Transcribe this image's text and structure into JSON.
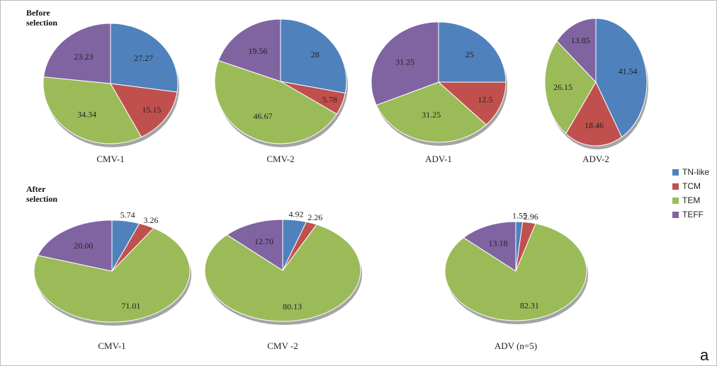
{
  "colors": {
    "TN-like": "#4f81bd",
    "TCM": "#c0504d",
    "TEM": "#9bbb59",
    "TEFF": "#8064a2"
  },
  "sections": {
    "before": "Before selection",
    "after": "After selection"
  },
  "panel_letter": "a",
  "legend": [
    "TN-like",
    "TCM",
    "TEM",
    "TEFF"
  ],
  "chart_data": [
    {
      "type": "pie",
      "group": "before",
      "title": "CMV-1",
      "labels": [
        "TN-like",
        "TCM",
        "TEM",
        "TEFF"
      ],
      "value_labels": [
        "27.27",
        "15.15",
        "34.34",
        "23.23"
      ],
      "values": [
        27.27,
        15.15,
        34.34,
        23.23
      ]
    },
    {
      "type": "pie",
      "group": "before",
      "title": "CMV-2",
      "labels": [
        "TN-like",
        "TCM",
        "TEM",
        "TEFF"
      ],
      "value_labels": [
        "28",
        "5.78",
        "46.67",
        "19.56"
      ],
      "values": [
        28,
        5.78,
        46.67,
        19.56
      ]
    },
    {
      "type": "pie",
      "group": "before",
      "title": "ADV-1",
      "labels": [
        "TN-like",
        "TCM",
        "TEM",
        "TEFF"
      ],
      "value_labels": [
        "25",
        "12.5",
        "31.25",
        "31.25"
      ],
      "values": [
        25,
        12.5,
        31.25,
        31.25
      ]
    },
    {
      "type": "pie",
      "group": "before",
      "title": "ADV-2",
      "labels": [
        "TN-like",
        "TCM",
        "TEM",
        "TEFF"
      ],
      "value_labels": [
        "41.54",
        "18.46",
        "26.15",
        "13.85"
      ],
      "values": [
        41.54,
        18.46,
        26.15,
        13.85
      ]
    },
    {
      "type": "pie",
      "group": "after",
      "title": "CMV-1",
      "labels": [
        "TN-like",
        "TCM",
        "TEM",
        "TEFF"
      ],
      "value_labels": [
        "5.74",
        "3.26",
        "71.01",
        "20.00"
      ],
      "values": [
        5.74,
        3.26,
        71.01,
        20.0
      ]
    },
    {
      "type": "pie",
      "group": "after",
      "title": "CMV -2",
      "labels": [
        "TN-like",
        "TCM",
        "TEM",
        "TEFF"
      ],
      "value_labels": [
        "4.92",
        "2.26",
        "80.13",
        "12.70"
      ],
      "values": [
        4.92,
        2.26,
        80.13,
        12.7
      ]
    },
    {
      "type": "pie",
      "group": "after",
      "title": "ADV (n=5)",
      "labels": [
        "TN-like",
        "TCM",
        "TEM",
        "TEFF"
      ],
      "value_labels": [
        "1.55",
        "2.96",
        "82.31",
        "13.18"
      ],
      "values": [
        1.55,
        2.96,
        82.31,
        13.18
      ]
    }
  ]
}
